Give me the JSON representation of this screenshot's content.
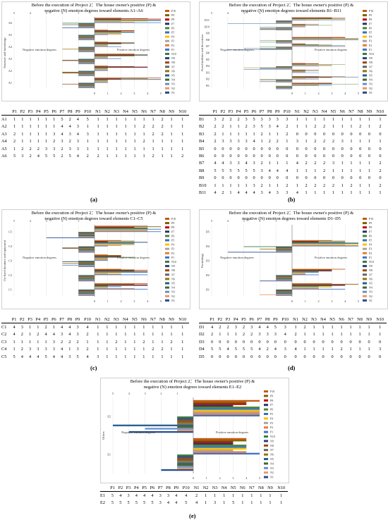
{
  "legend_labels": [
    "P10",
    "P9",
    "P8",
    "P7",
    "P6",
    "P5",
    "P4",
    "P3",
    "P2",
    "P1",
    "N10",
    "N9",
    "N8",
    "N7",
    "N6",
    "N5",
    "N4",
    "N3",
    "N2",
    "N1"
  ],
  "neg_ticks": [
    "5",
    "4",
    "3",
    "2",
    "1"
  ],
  "pos_ticks": [
    "0",
    "1",
    "2",
    "3",
    "4",
    "5"
  ],
  "neg_label": "Negative emotion degrees",
  "pos_label": "Positive emotion degrees",
  "table_header": [
    "P1",
    "P2",
    "P3",
    "P4",
    "P5",
    "P6",
    "P7",
    "P8",
    "P9",
    "P10",
    "N1",
    "N2",
    "N3",
    "N4",
    "N5",
    "N6",
    "N7",
    "N8",
    "N9",
    "N10"
  ],
  "colors": {
    "P10": "#c55a11",
    "P9": "#7f6000",
    "P8": "#c00000",
    "P7": "#1f3864",
    "P6": "#548235",
    "P5": "#2e75b6",
    "P4": "#ffc000",
    "P3": "#a5a5a5",
    "P2": "#ed7d31",
    "P1": "#4472c4",
    "N10": "#3a7d44",
    "N9": "#264478",
    "N8": "#9e480e",
    "N7": "#636363",
    "N6": "#997300",
    "N5": "#255e91",
    "N4": "#43682b",
    "N3": "#698ed0",
    "N2": "#f1975a",
    "N1": "#264d91"
  },
  "chart_data": [
    {
      "type": "bar",
      "title": "Before the execution of Project 2：The house owner's positive (P) & negative (N) emotion degrees toward elements A1–A6",
      "ylabel": "Structure and furnishings",
      "panel_label": "(a)",
      "xlim": [
        -5,
        5
      ],
      "categories": [
        "A1",
        "A2",
        "A3",
        "A4",
        "A5",
        "A6"
      ],
      "rows": [
        [
          1,
          1,
          1,
          1,
          1,
          1,
          5,
          2,
          4,
          5,
          1,
          1,
          1,
          1,
          1,
          1,
          1,
          2,
          1,
          1
        ],
        [
          1,
          1,
          1,
          1,
          1,
          1,
          4,
          4,
          3,
          1,
          1,
          1,
          1,
          1,
          1,
          2,
          2,
          2,
          1,
          1
        ],
        [
          2,
          1,
          1,
          1,
          1,
          3,
          4,
          3,
          4,
          3,
          1,
          1,
          1,
          1,
          1,
          1,
          2,
          2,
          1,
          1
        ],
        [
          2,
          1,
          1,
          1,
          1,
          2,
          3,
          2,
          3,
          1,
          1,
          1,
          1,
          1,
          1,
          2,
          1,
          1,
          1,
          1
        ],
        [
          1,
          2,
          2,
          2,
          3,
          3,
          2,
          3,
          3,
          1,
          1,
          1,
          1,
          1,
          1,
          1,
          1,
          1,
          1,
          1
        ],
        [
          5,
          3,
          2,
          4,
          5,
          5,
          2,
          5,
          4,
          2,
          2,
          1,
          1,
          1,
          1,
          1,
          2,
          1,
          1,
          2
        ]
      ]
    },
    {
      "type": "bar",
      "title": "Before the execution of Project 2：The house owner's positive (P) & negative (N) emotion degrees toward elements B1–B11",
      "ylabel": "Fixed facilities and decoration",
      "panel_label": "(b)",
      "xlim": [
        -5,
        5
      ],
      "categories": [
        "B1",
        "B2",
        "B3",
        "B4",
        "B5",
        "B6",
        "B7",
        "B8",
        "B9",
        "B10",
        "B11"
      ],
      "rows": [
        [
          3,
          2,
          2,
          2,
          3,
          5,
          3,
          3,
          3,
          3,
          1,
          1,
          1,
          1,
          1,
          1,
          1,
          1,
          1,
          1
        ],
        [
          2,
          2,
          1,
          1,
          2,
          3,
          5,
          3,
          4,
          2,
          1,
          1,
          2,
          2,
          1,
          1,
          1,
          2,
          1,
          2
        ],
        [
          2,
          1,
          1,
          1,
          1,
          1,
          2,
          1,
          1,
          2,
          0,
          0,
          0,
          0,
          0,
          0,
          0,
          0,
          0,
          0
        ],
        [
          2,
          3,
          3,
          3,
          3,
          4,
          1,
          2,
          2,
          1,
          3,
          1,
          2,
          2,
          2,
          3,
          1,
          1,
          1,
          1
        ],
        [
          0,
          0,
          0,
          0,
          0,
          0,
          0,
          0,
          0,
          0,
          0,
          0,
          0,
          0,
          0,
          0,
          0,
          0,
          0,
          0
        ],
        [
          0,
          0,
          0,
          0,
          0,
          0,
          0,
          0,
          0,
          0,
          0,
          0,
          0,
          0,
          0,
          0,
          0,
          0,
          0,
          0
        ],
        [
          4,
          4,
          3,
          3,
          4,
          3,
          2,
          1,
          1,
          1,
          4,
          2,
          2,
          2,
          3,
          1,
          1,
          1,
          1,
          2
        ],
        [
          5,
          5,
          5,
          5,
          5,
          5,
          3,
          4,
          4,
          4,
          1,
          1,
          1,
          2,
          1,
          1,
          1,
          1,
          1,
          2
        ],
        [
          0,
          0,
          0,
          0,
          0,
          0,
          0,
          0,
          0,
          0,
          0,
          0,
          0,
          0,
          0,
          0,
          0,
          0,
          0,
          0
        ],
        [
          1,
          1,
          1,
          1,
          1,
          3,
          2,
          1,
          1,
          2,
          1,
          2,
          2,
          2,
          2,
          1,
          2,
          1,
          1,
          2
        ],
        [
          4,
          2,
          1,
          4,
          4,
          4,
          3,
          4,
          3,
          3,
          4,
          1,
          1,
          1,
          1,
          1,
          1,
          1,
          1,
          1
        ]
      ]
    },
    {
      "type": "bar",
      "title": "Before the execution of Project 2：The house owner's positive (P) & negative (N) emotion degrees toward elements C1–C5",
      "ylabel": "Un-fixed furniture and equipment",
      "panel_label": "(c)",
      "xlim": [
        -5,
        5
      ],
      "categories": [
        "C1",
        "C2",
        "C3",
        "C4",
        "C5"
      ],
      "rows": [
        [
          4,
          3,
          1,
          1,
          2,
          1,
          4,
          4,
          3,
          4,
          1,
          1,
          1,
          1,
          1,
          1,
          1,
          1,
          1,
          1
        ],
        [
          4,
          2,
          1,
          2,
          4,
          4,
          3,
          4,
          3,
          2,
          1,
          1,
          1,
          1,
          1,
          1,
          1,
          1,
          1,
          1
        ],
        [
          1,
          1,
          1,
          1,
          1,
          3,
          2,
          2,
          2,
          1,
          1,
          1,
          2,
          1,
          1,
          2,
          1,
          1,
          2,
          1
        ],
        [
          1,
          2,
          3,
          3,
          3,
          3,
          4,
          1,
          3,
          2,
          1,
          1,
          1,
          1,
          1,
          1,
          2,
          2,
          1,
          1
        ],
        [
          5,
          4,
          4,
          4,
          5,
          4,
          4,
          3,
          5,
          4,
          3,
          1,
          1,
          1,
          1,
          1,
          1,
          1,
          1,
          1
        ]
      ]
    },
    {
      "type": "bar",
      "title": "Before the execution of Project 2：The house owner's positive (P) & negative (N) emotion degrees toward elements D1–D5",
      "ylabel": "Furnishings",
      "panel_label": "(d)",
      "xlim": [
        -5,
        5
      ],
      "categories": [
        "D1",
        "D2",
        "D3",
        "D4",
        "D5"
      ],
      "rows": [
        [
          4,
          2,
          2,
          3,
          2,
          3,
          4,
          4,
          5,
          3,
          1,
          2,
          1,
          1,
          1,
          1,
          1,
          1,
          1,
          1
        ],
        [
          2,
          1,
          1,
          1,
          2,
          2,
          3,
          3,
          3,
          4,
          2,
          1,
          1,
          1,
          1,
          1,
          1,
          1,
          1,
          1
        ],
        [
          0,
          0,
          0,
          0,
          0,
          0,
          0,
          0,
          0,
          0,
          0,
          0,
          0,
          0,
          0,
          0,
          0,
          0,
          0,
          0
        ],
        [
          5,
          5,
          4,
          5,
          5,
          5,
          4,
          2,
          4,
          3,
          4,
          1,
          1,
          1,
          1,
          2,
          1,
          1,
          1,
          3
        ],
        [
          0,
          0,
          0,
          0,
          0,
          0,
          0,
          0,
          0,
          0,
          0,
          0,
          0,
          0,
          0,
          0,
          0,
          0,
          0,
          0
        ]
      ]
    },
    {
      "type": "bar",
      "title": "Before the execution of Project 2：The house owner's positive (P) & negative (N) emotion degrees toward elements E1–E2",
      "ylabel": "Others",
      "panel_label": "(e)",
      "xlim": [
        -5,
        5
      ],
      "categories": [
        "E1",
        "E2"
      ],
      "rows": [
        [
          5,
          4,
          3,
          4,
          4,
          4,
          3,
          3,
          4,
          4,
          2,
          1,
          1,
          1,
          1,
          1,
          1,
          1,
          1,
          1
        ],
        [
          5,
          5,
          5,
          5,
          5,
          5,
          3,
          4,
          4,
          5,
          4,
          1,
          3,
          1,
          5,
          1,
          1,
          1,
          1,
          1
        ]
      ]
    }
  ]
}
